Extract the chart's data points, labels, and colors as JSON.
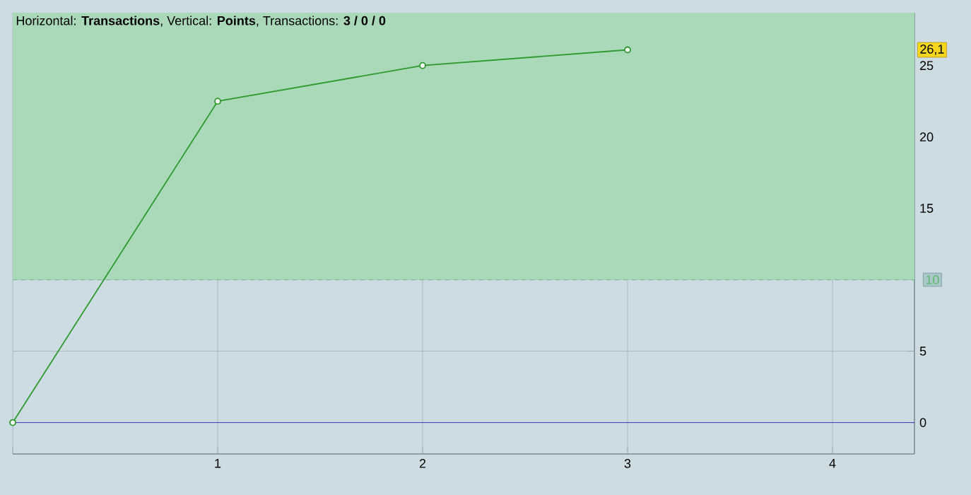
{
  "chart_data": {
    "type": "line",
    "title": "Horizontal: **Transactions**, Vertical: **Points**, Transactions: **3 / 0 / 0**",
    "x": [
      0,
      1,
      2,
      3
    ],
    "series": [
      {
        "color": "#2e9a2e",
        "values": [
          0,
          22.5,
          25.0,
          26.1
        ]
      }
    ],
    "xlim": [
      0,
      4.4
    ],
    "xticks": [
      {
        "value": 0,
        "label": null
      },
      1,
      2,
      3,
      4
    ],
    "ylim": [
      -2.2,
      28.7
    ],
    "yticks": [
      0,
      5,
      {
        "value": 10,
        "label": null
      },
      15,
      20,
      25
    ],
    "grid": true,
    "marker": "circle",
    "line_style": "solid",
    "ref_lines": [
      {
        "axis": "y",
        "value": 0,
        "color": "#2323b8",
        "line_style": "solid"
      },
      {
        "axis": "y",
        "value": 10,
        "label": "10",
        "color": "#5cb870",
        "line_style": "dashed"
      }
    ],
    "bands": [
      {
        "axis": "y",
        "from": 10,
        "to": 28.7,
        "color": "#a9d9b9"
      }
    ],
    "annotations": [
      {
        "text": "26,1",
        "x": 4.4,
        "y": 26.1
      }
    ]
  }
}
